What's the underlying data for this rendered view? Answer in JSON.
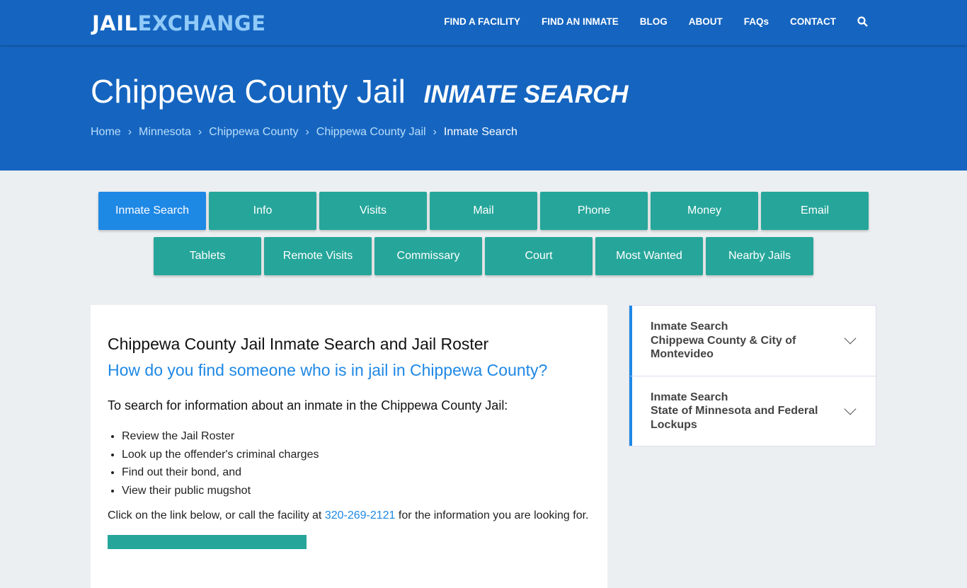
{
  "nav": {
    "logo_a": "JAIL",
    "logo_b": "EXCHANGE",
    "items": [
      "FIND A FACILITY",
      "FIND AN INMATE",
      "BLOG",
      "ABOUT",
      "FAQs",
      "CONTACT"
    ]
  },
  "hero": {
    "title": "Chippewa County Jail",
    "subtitle": "INMATE SEARCH",
    "breadcrumbs": [
      "Home",
      "Minnesota",
      "Chippewa County",
      "Chippewa County Jail",
      "Inmate Search"
    ]
  },
  "tabs": {
    "row1": [
      "Inmate Search",
      "Info",
      "Visits",
      "Mail",
      "Phone",
      "Money",
      "Email"
    ],
    "row2": [
      "Tablets",
      "Remote Visits",
      "Commissary",
      "Court",
      "Most Wanted",
      "Nearby Jails"
    ]
  },
  "main": {
    "heading": "Chippewa County Jail Inmate Search and Jail Roster",
    "question": "How do you find someone who is in jail in Chippewa County?",
    "intro": "To search for information about an inmate in the Chippewa County Jail:",
    "bullets": [
      "Review the Jail Roster",
      "Look up the offender's criminal charges",
      "Find out their bond, and",
      "View their public mugshot"
    ],
    "para_before": "Click on the link below, or call the facility at ",
    "phone": "320-269-2121",
    "para_after": " for the information you are looking for."
  },
  "sidebar": [
    {
      "title": "Inmate Search",
      "sub": "Chippewa County & City of Montevideo"
    },
    {
      "title": "Inmate Search",
      "sub": "State of Minnesota and Federal Lockups"
    }
  ]
}
